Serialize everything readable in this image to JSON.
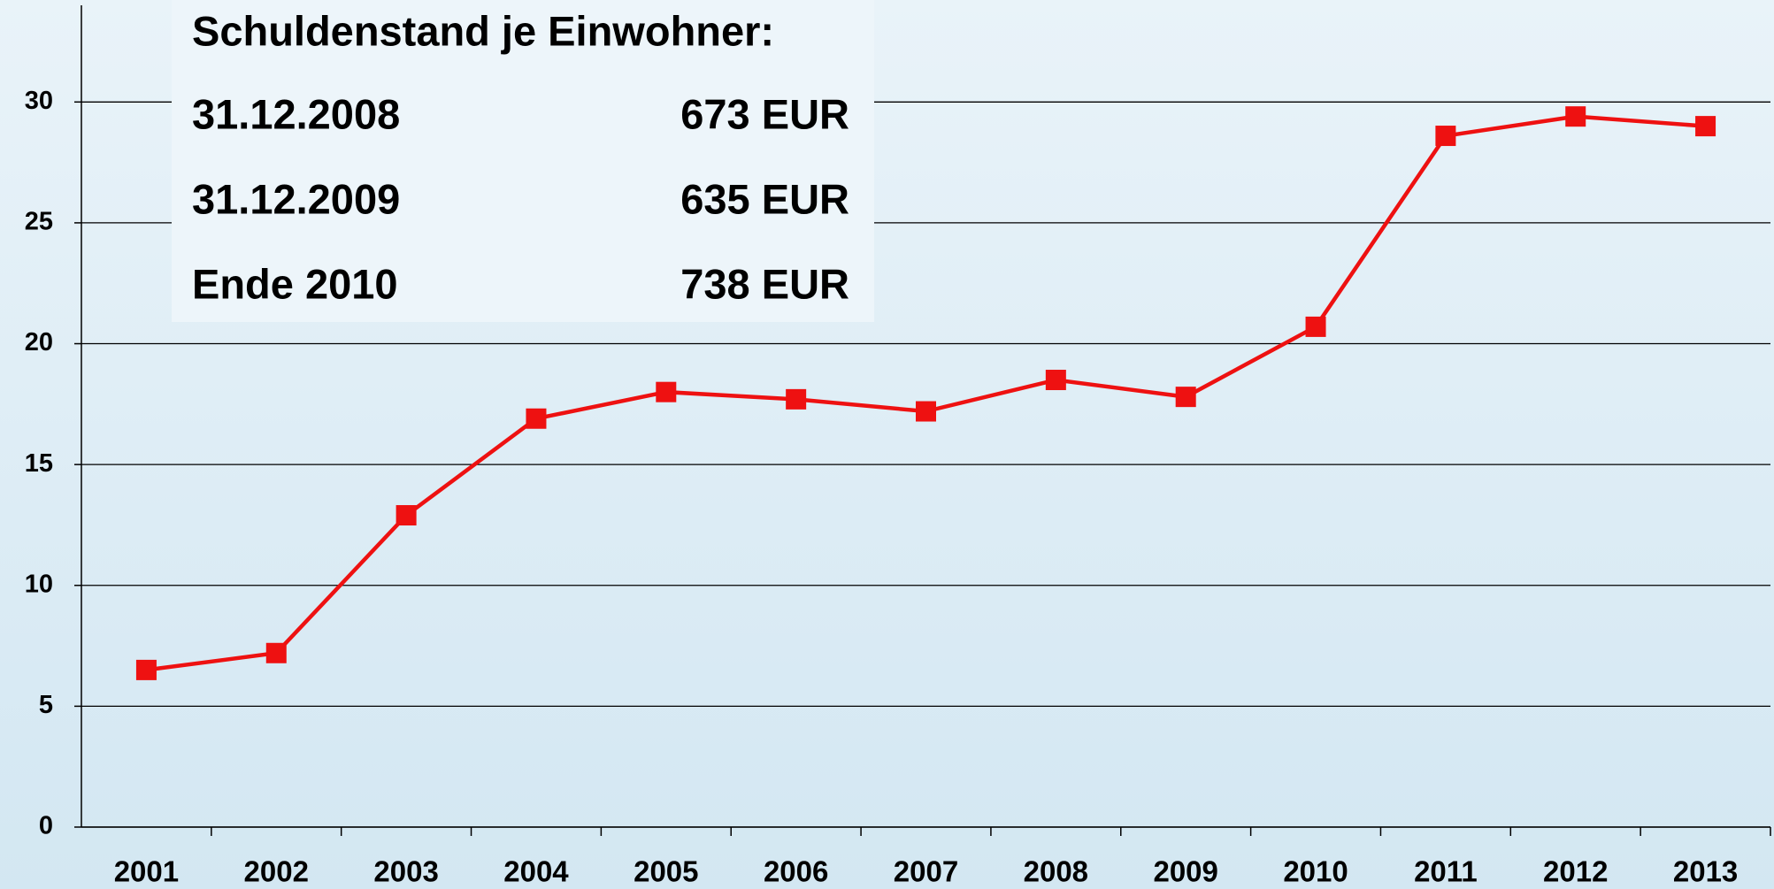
{
  "chart_data": {
    "type": "line",
    "categories": [
      "2001",
      "2002",
      "2003",
      "2004",
      "2005",
      "2006",
      "2007",
      "2008",
      "2009",
      "2010",
      "2011",
      "2012",
      "2013"
    ],
    "series": [
      {
        "name": "Schuldenstand",
        "color": "#ee1111",
        "values": [
          6.5,
          7.2,
          12.9,
          16.9,
          18.0,
          17.7,
          17.2,
          18.5,
          17.8,
          20.7,
          28.6,
          29.4,
          29.0
        ]
      }
    ],
    "ylim": [
      0,
      34
    ],
    "yticks": [
      0,
      5,
      10,
      15,
      20,
      25,
      30
    ],
    "grid": true,
    "annotation": {
      "title": "Schuldenstand je Einwohner:",
      "rows": [
        [
          "31.12.2008",
          "673 EUR"
        ],
        [
          "31.12.2009",
          "635 EUR"
        ],
        [
          "Ende 2010",
          "738 EUR"
        ]
      ]
    }
  }
}
